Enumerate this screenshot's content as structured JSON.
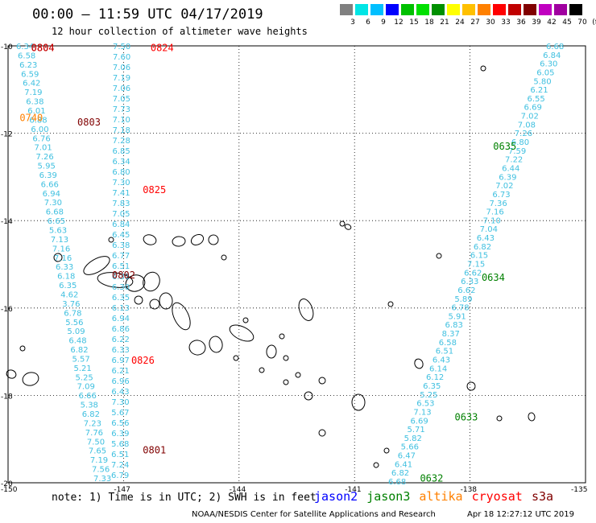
{
  "header": {
    "title": "00:00 – 11:59 UTC 04/17/2019",
    "subtitle": "12 hour collection of altimeter wave heights"
  },
  "legend": {
    "colors": [
      "#808080",
      "#00e5e5",
      "#00bfff",
      "#0000ff",
      "#00c000",
      "#00e000",
      "#009000",
      "#ffff00",
      "#ffc000",
      "#ff8000",
      "#ff0000",
      "#c00000",
      "#800000",
      "#c000c0",
      "#a000a0",
      "#000000"
    ],
    "labels": [
      "3",
      "6",
      "9",
      "12",
      "15",
      "18",
      "21",
      "24",
      "27",
      "30",
      "33",
      "36",
      "39",
      "42",
      "45",
      "70",
      "(ft)"
    ]
  },
  "axes": {
    "lat_labels": [
      "-10",
      "-12",
      "-14",
      "-16",
      "-18",
      "-20"
    ],
    "lon_labels": [
      "-150",
      "-147",
      "-144",
      "-141",
      "-138",
      "-135"
    ]
  },
  "tracks": [
    {
      "name": "track-a",
      "color": "#40c0e0",
      "values": [
        "6.34",
        "6.58",
        "6.23",
        "6.59",
        "6.42",
        "7.19",
        "6.38",
        "6.01",
        "6.88",
        "6.00",
        "6.76",
        "7.01",
        "7.26",
        "5.95",
        "6.39",
        "6.66",
        "6.94",
        "7.30",
        "6.68",
        "6.65",
        "5.63",
        "7.13",
        "7.16",
        "7.16",
        "6.33",
        "6.18",
        "6.35",
        "4.62",
        "3.76",
        "6.78",
        "5.56",
        "5.09",
        "6.48",
        "6.82",
        "5.57",
        "5.21",
        "5.25",
        "7.09",
        "6.66",
        "5.38",
        "6.82",
        "7.23",
        "7.76",
        "7.50",
        "7.65",
        "7.19",
        "7.56",
        "7.33"
      ]
    },
    {
      "name": "track-b",
      "color": "#40c0e0",
      "values": [
        "7.50",
        "7.60",
        "7.06",
        "7.19",
        "7.06",
        "7.05",
        "7.73",
        "7.10",
        "7.18",
        "7.28",
        "6.85",
        "6.34",
        "6.80",
        "7.30",
        "7.41",
        "7.83",
        "7.05",
        "6.84",
        "6.45",
        "6.38",
        "6.77",
        "6.51",
        "6.31",
        "6.30",
        "6.35",
        "6.13",
        "6.94",
        "6.86",
        "6.22",
        "6.33",
        "6.97",
        "6.21",
        "6.96",
        "6.43",
        "7.30",
        "5.67",
        "6.56",
        "6.39",
        "5.68",
        "6.51",
        "7.24",
        "6.79"
      ]
    },
    {
      "name": "track-c",
      "color": "#40c0e0",
      "values": [
        "6.68",
        "6.84",
        "6.30",
        "6.05",
        "5.80",
        "6.21",
        "6.55",
        "6.69",
        "7.02",
        "7.08",
        "7.26",
        "6.80",
        "7.59",
        "7.22",
        "6.44",
        "6.39",
        "7.02",
        "6.73",
        "7.36",
        "7.16",
        "7.10",
        "7.04",
        "6.43",
        "6.82",
        "6.15",
        "7.15",
        "6.62",
        "6.33",
        "6.62",
        "5.89",
        "6.78",
        "5.91",
        "6.83",
        "8.37",
        "6.58",
        "6.51",
        "6.43",
        "6.14",
        "6.12",
        "6.35",
        "5.25",
        "6.53",
        "7.13",
        "6.69",
        "5.71",
        "5.82",
        "5.66",
        "6.47",
        "6.41",
        "6.82",
        "6.68"
      ]
    }
  ],
  "labels": [
    {
      "text": "0804",
      "color": "#ff0000",
      "lon": -149.4,
      "lat": -10.05
    },
    {
      "text": "0804",
      "color": "#c00000",
      "lon": -149.4,
      "lat": -10.05
    },
    {
      "text": "0824",
      "color": "#ff0000",
      "lon": -146.3,
      "lat": -10.05
    },
    {
      "text": "0803",
      "color": "#800000",
      "lon": -148.2,
      "lat": -11.75
    },
    {
      "text": "0825",
      "color": "#ff0000",
      "lon": -146.5,
      "lat": -13.3
    },
    {
      "text": "0802",
      "color": "#800000",
      "lon": -147.3,
      "lat": -15.25
    },
    {
      "text": "0826",
      "color": "#ff0000",
      "lon": -146.8,
      "lat": -17.2
    },
    {
      "text": "0801",
      "color": "#800000",
      "lon": -146.5,
      "lat": -19.25
    },
    {
      "text": "0635",
      "color": "#008000",
      "lon": -137.4,
      "lat": -12.3
    },
    {
      "text": "0634",
      "color": "#008000",
      "lon": -137.7,
      "lat": -15.3
    },
    {
      "text": "0633",
      "color": "#008000",
      "lon": -138.4,
      "lat": -18.5
    },
    {
      "text": "0632",
      "color": "#008000",
      "lon": -139.3,
      "lat": -19.9
    },
    {
      "text": "0740",
      "color": "#ff8000",
      "lon": -149.7,
      "lat": -11.65
    }
  ],
  "note": "note: 1) Time is in UTC; 2) SWH is in feet",
  "satellites": [
    {
      "name": "jason2",
      "color": "#0000ff"
    },
    {
      "name": "jason3",
      "color": "#008000"
    },
    {
      "name": "altika",
      "color": "#ff8000"
    },
    {
      "name": "cryosat",
      "color": "#ff0000"
    },
    {
      "name": "s3a",
      "color": "#800000"
    }
  ],
  "footer": {
    "credit": "NOAA/NESDIS Center for Satellite Applications and Research",
    "timestamp": "Apr 18 12:27:12 UTC 2019"
  }
}
